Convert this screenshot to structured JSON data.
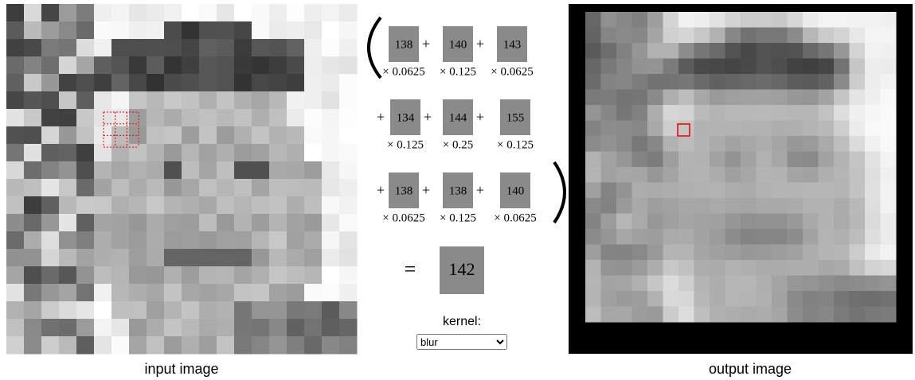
{
  "input_caption": "input image",
  "output_caption": "output image",
  "plus": "+",
  "equals": "=",
  "kernel": {
    "rows": [
      [
        {
          "pixel": 138,
          "weight": "× 0.0625"
        },
        {
          "pixel": 140,
          "weight": "× 0.125"
        },
        {
          "pixel": 143,
          "weight": "× 0.0625"
        }
      ],
      [
        {
          "pixel": 134,
          "weight": "× 0.125"
        },
        {
          "pixel": 144,
          "weight": "× 0.25"
        },
        {
          "pixel": 155,
          "weight": "× 0.125"
        }
      ],
      [
        {
          "pixel": 138,
          "weight": "× 0.0625"
        },
        {
          "pixel": 138,
          "weight": "× 0.125"
        },
        {
          "pixel": 140,
          "weight": "× 0.0625"
        }
      ]
    ]
  },
  "result": 142,
  "kernel_label": "kernel:",
  "kernel_option": "blur"
}
